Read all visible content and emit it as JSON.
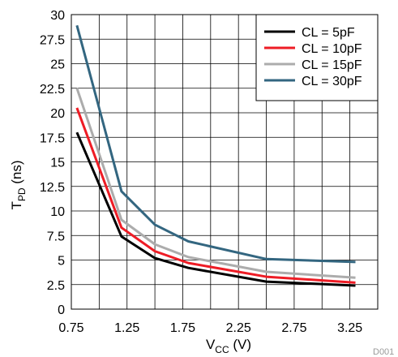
{
  "chart_data": {
    "type": "line",
    "xlabel": "V",
    "xlabel_subscript": "CC",
    "xlabel_unit": " (V)",
    "ylabel": "T",
    "ylabel_subscript": "PD",
    "ylabel_unit": " (ns)",
    "xlim": [
      0.75,
      3.5
    ],
    "ylim": [
      0,
      30
    ],
    "x_ticks": [
      0.75,
      1.25,
      1.75,
      2.25,
      2.75,
      3.25
    ],
    "x_tick_labels": [
      "0.75",
      "1.25",
      "1.75",
      "2.25",
      "2.75",
      "3.25"
    ],
    "x_grid": [
      0.75,
      1.0,
      1.25,
      1.5,
      1.75,
      2.0,
      2.25,
      2.5,
      2.75,
      3.0,
      3.25,
      3.5
    ],
    "y_ticks": [
      0,
      2.5,
      5,
      7.5,
      10,
      12.5,
      15,
      17.5,
      20,
      22.5,
      25,
      27.5,
      30
    ],
    "y_tick_labels": [
      "0",
      "2.5",
      "5",
      "7.5",
      "10",
      "12.5",
      "15",
      "17.5",
      "20",
      "22.5",
      "25",
      "27.5",
      "30"
    ],
    "grid": true,
    "legend_position": "top-right",
    "watermark": "D001",
    "series": [
      {
        "name": "CL = 5pF",
        "color": "#000000",
        "x": [
          0.8,
          1.2,
          1.5,
          1.8,
          2.5,
          3.3
        ],
        "y": [
          18.0,
          7.4,
          5.2,
          4.2,
          2.8,
          2.4
        ]
      },
      {
        "name": "CL = 10pF",
        "color": "#ee1c25",
        "x": [
          0.8,
          1.2,
          1.5,
          1.8,
          2.5,
          3.3
        ],
        "y": [
          20.5,
          8.3,
          5.9,
          4.7,
          3.3,
          2.7
        ]
      },
      {
        "name": "CL = 15pF",
        "color": "#acacac",
        "x": [
          0.8,
          1.2,
          1.5,
          1.8,
          2.5,
          3.3
        ],
        "y": [
          22.5,
          9.1,
          6.6,
          5.3,
          3.8,
          3.2
        ]
      },
      {
        "name": "CL = 30pF",
        "color": "#336680",
        "x": [
          0.8,
          1.2,
          1.5,
          1.8,
          2.5,
          3.3
        ],
        "y": [
          28.9,
          12.0,
          8.6,
          6.9,
          5.1,
          4.8
        ]
      }
    ]
  }
}
